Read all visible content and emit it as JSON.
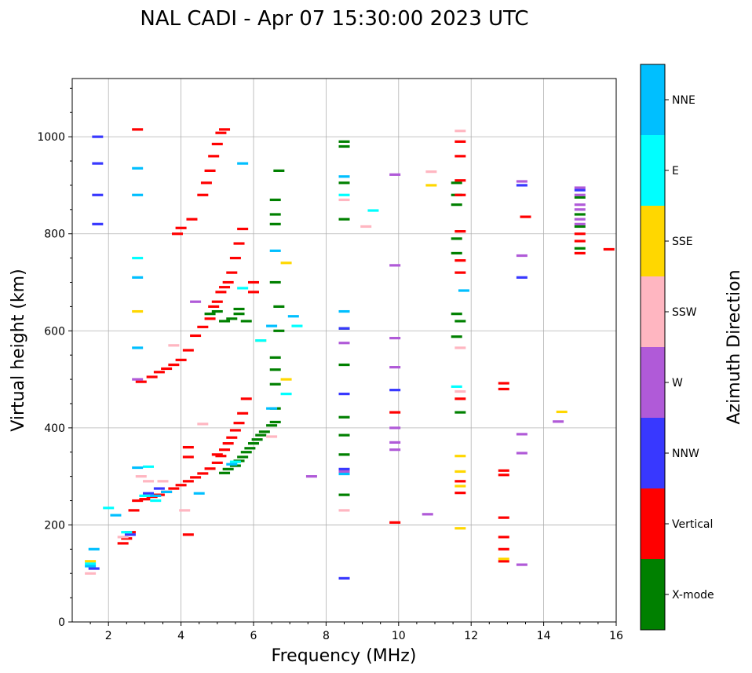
{
  "chart_data": {
    "type": "scatter",
    "title": "NAL CADI - Apr 07 15:30:00 2023 UTC",
    "xlabel": "Frequency (MHz)",
    "ylabel": "Virtual height (km)",
    "xlim": [
      1,
      16
    ],
    "ylim": [
      0,
      1120
    ],
    "xticks": [
      2,
      4,
      6,
      8,
      10,
      12,
      14,
      16
    ],
    "yticks": [
      0,
      200,
      400,
      600,
      800,
      1000
    ],
    "grid": true,
    "colorbar": {
      "label": "Azimuth Direction",
      "categories": [
        {
          "name": "X-mode",
          "color": "#008000"
        },
        {
          "name": "Vertical",
          "color": "#ff0000"
        },
        {
          "name": "NNW",
          "color": "#3838ff"
        },
        {
          "name": "W",
          "color": "#b05ad8"
        },
        {
          "name": "SSW",
          "color": "#ffb6c1"
        },
        {
          "name": "SSE",
          "color": "#ffd700"
        },
        {
          "name": "E",
          "color": "#00ffff"
        },
        {
          "name": "NNE",
          "color": "#00bfff"
        }
      ]
    },
    "series": [
      {
        "name": "X-mode",
        "points": [
          [
            4.8,
            635
          ],
          [
            5.0,
            640
          ],
          [
            5.2,
            620
          ],
          [
            5.4,
            625
          ],
          [
            5.6,
            635
          ],
          [
            5.6,
            645
          ],
          [
            5.8,
            620
          ],
          [
            5.2,
            307
          ],
          [
            5.3,
            315
          ],
          [
            5.5,
            322
          ],
          [
            5.6,
            332
          ],
          [
            5.7,
            340
          ],
          [
            5.8,
            350
          ],
          [
            5.9,
            358
          ],
          [
            6.0,
            368
          ],
          [
            6.1,
            376
          ],
          [
            6.2,
            385
          ],
          [
            6.3,
            392
          ],
          [
            6.5,
            405
          ],
          [
            6.6,
            412
          ],
          [
            6.6,
            440
          ],
          [
            6.6,
            490
          ],
          [
            6.6,
            520
          ],
          [
            6.6,
            545
          ],
          [
            6.7,
            600
          ],
          [
            6.7,
            650
          ],
          [
            6.6,
            700
          ],
          [
            6.6,
            840
          ],
          [
            6.6,
            870
          ],
          [
            6.6,
            820
          ],
          [
            6.7,
            930
          ],
          [
            8.5,
            990
          ],
          [
            8.5,
            980
          ],
          [
            8.5,
            905
          ],
          [
            8.5,
            830
          ],
          [
            8.5,
            605
          ],
          [
            8.5,
            530
          ],
          [
            8.5,
            422
          ],
          [
            8.5,
            385
          ],
          [
            8.5,
            345
          ],
          [
            8.5,
            262
          ],
          [
            11.6,
            905
          ],
          [
            11.6,
            880
          ],
          [
            11.6,
            860
          ],
          [
            11.6,
            790
          ],
          [
            11.6,
            760
          ],
          [
            11.6,
            635
          ],
          [
            11.7,
            620
          ],
          [
            11.6,
            588
          ],
          [
            11.7,
            432
          ],
          [
            15.0,
            875
          ],
          [
            15.0,
            840
          ],
          [
            15.0,
            815
          ],
          [
            15.0,
            770
          ]
        ]
      },
      {
        "name": "Vertical",
        "points": [
          [
            2.4,
            162
          ],
          [
            2.5,
            172
          ],
          [
            2.6,
            185
          ],
          [
            2.7,
            230
          ],
          [
            2.8,
            250
          ],
          [
            3.0,
            253
          ],
          [
            3.2,
            258
          ],
          [
            3.4,
            262
          ],
          [
            3.6,
            268
          ],
          [
            3.8,
            275
          ],
          [
            4.0,
            282
          ],
          [
            4.2,
            290
          ],
          [
            4.4,
            298
          ],
          [
            4.6,
            306
          ],
          [
            4.8,
            316
          ],
          [
            5.0,
            328
          ],
          [
            5.1,
            342
          ],
          [
            5.2,
            355
          ],
          [
            5.3,
            368
          ],
          [
            5.4,
            380
          ],
          [
            5.5,
            395
          ],
          [
            5.6,
            410
          ],
          [
            5.7,
            430
          ],
          [
            5.8,
            460
          ],
          [
            2.9,
            495
          ],
          [
            3.2,
            505
          ],
          [
            3.4,
            515
          ],
          [
            3.6,
            522
          ],
          [
            3.8,
            530
          ],
          [
            4.0,
            540
          ],
          [
            4.2,
            560
          ],
          [
            4.4,
            590
          ],
          [
            4.6,
            608
          ],
          [
            4.8,
            625
          ],
          [
            4.9,
            650
          ],
          [
            5.0,
            660
          ],
          [
            5.1,
            680
          ],
          [
            5.2,
            690
          ],
          [
            5.3,
            700
          ],
          [
            5.4,
            720
          ],
          [
            5.5,
            750
          ],
          [
            5.6,
            780
          ],
          [
            5.7,
            810
          ],
          [
            3.9,
            800
          ],
          [
            4.0,
            812
          ],
          [
            4.3,
            830
          ],
          [
            4.6,
            880
          ],
          [
            4.7,
            905
          ],
          [
            4.8,
            930
          ],
          [
            4.9,
            960
          ],
          [
            5.0,
            985
          ],
          [
            5.1,
            1008
          ],
          [
            5.2,
            1015
          ],
          [
            6.0,
            700
          ],
          [
            6.0,
            680
          ],
          [
            2.8,
            1015
          ],
          [
            4.2,
            360
          ],
          [
            4.2,
            340
          ],
          [
            4.2,
            180
          ],
          [
            5.0,
            345
          ],
          [
            11.7,
            745
          ],
          [
            11.7,
            720
          ],
          [
            11.7,
            460
          ],
          [
            11.7,
            290
          ],
          [
            11.7,
            266
          ],
          [
            11.7,
            990
          ],
          [
            11.7,
            960
          ],
          [
            11.7,
            910
          ],
          [
            11.7,
            880
          ],
          [
            11.7,
            805
          ],
          [
            12.9,
            492
          ],
          [
            12.9,
            480
          ],
          [
            12.9,
            312
          ],
          [
            12.9,
            303
          ],
          [
            12.9,
            215
          ],
          [
            12.9,
            175
          ],
          [
            12.9,
            150
          ],
          [
            12.9,
            125
          ],
          [
            13.5,
            835
          ],
          [
            15.0,
            800
          ],
          [
            15.0,
            785
          ],
          [
            15.0,
            760
          ],
          [
            15.8,
            768
          ],
          [
            9.9,
            432
          ],
          [
            9.9,
            205
          ]
        ]
      },
      {
        "name": "NNW",
        "points": [
          [
            1.7,
            1000
          ],
          [
            1.7,
            945
          ],
          [
            1.7,
            880
          ],
          [
            1.7,
            820
          ],
          [
            1.6,
            110
          ],
          [
            2.6,
            180
          ],
          [
            3.1,
            265
          ],
          [
            3.4,
            275
          ],
          [
            8.5,
            605
          ],
          [
            8.5,
            470
          ],
          [
            8.5,
            315
          ],
          [
            8.5,
            90
          ],
          [
            9.9,
            478
          ],
          [
            13.4,
            900
          ],
          [
            13.4,
            710
          ],
          [
            15.0,
            890
          ]
        ]
      },
      {
        "name": "W",
        "points": [
          [
            2.8,
            500
          ],
          [
            4.4,
            660
          ],
          [
            7.6,
            300
          ],
          [
            8.5,
            575
          ],
          [
            8.5,
            310
          ],
          [
            9.9,
            922
          ],
          [
            9.9,
            735
          ],
          [
            9.9,
            585
          ],
          [
            9.9,
            525
          ],
          [
            9.9,
            400
          ],
          [
            9.9,
            370
          ],
          [
            9.9,
            355
          ],
          [
            10.8,
            222
          ],
          [
            13.4,
            908
          ],
          [
            13.4,
            755
          ],
          [
            13.4,
            387
          ],
          [
            13.4,
            348
          ],
          [
            13.4,
            118
          ],
          [
            14.4,
            413
          ],
          [
            15.0,
            895
          ],
          [
            15.0,
            880
          ],
          [
            15.0,
            860
          ],
          [
            15.0,
            850
          ],
          [
            15.0,
            830
          ],
          [
            15.0,
            820
          ]
        ]
      },
      {
        "name": "SSW",
        "points": [
          [
            1.5,
            100
          ],
          [
            2.4,
            175
          ],
          [
            2.9,
            300
          ],
          [
            3.1,
            290
          ],
          [
            3.5,
            290
          ],
          [
            3.8,
            570
          ],
          [
            4.1,
            230
          ],
          [
            4.6,
            408
          ],
          [
            6.5,
            382
          ],
          [
            8.5,
            870
          ],
          [
            8.5,
            230
          ],
          [
            9.1,
            815
          ],
          [
            10.9,
            928
          ],
          [
            11.7,
            1012
          ],
          [
            11.7,
            565
          ],
          [
            11.7,
            475
          ]
        ]
      },
      {
        "name": "SSE",
        "points": [
          [
            1.5,
            125
          ],
          [
            2.8,
            640
          ],
          [
            6.2,
            580
          ],
          [
            6.9,
            740
          ],
          [
            6.9,
            500
          ],
          [
            10.9,
            900
          ],
          [
            11.7,
            342
          ],
          [
            11.7,
            310
          ],
          [
            11.7,
            280
          ],
          [
            11.7,
            193
          ],
          [
            12.9,
            130
          ],
          [
            14.5,
            433
          ]
        ]
      },
      {
        "name": "E",
        "points": [
          [
            1.5,
            120
          ],
          [
            2.0,
            235
          ],
          [
            2.5,
            185
          ],
          [
            2.8,
            750
          ],
          [
            3.0,
            260
          ],
          [
            3.1,
            320
          ],
          [
            3.3,
            250
          ],
          [
            5.5,
            330
          ],
          [
            5.7,
            688
          ],
          [
            6.2,
            580
          ],
          [
            6.9,
            470
          ],
          [
            7.2,
            610
          ],
          [
            8.5,
            880
          ],
          [
            9.3,
            848
          ],
          [
            11.6,
            485
          ]
        ]
      },
      {
        "name": "NNE",
        "points": [
          [
            1.5,
            115
          ],
          [
            1.6,
            150
          ],
          [
            2.2,
            220
          ],
          [
            2.8,
            935
          ],
          [
            2.8,
            880
          ],
          [
            2.8,
            710
          ],
          [
            2.8,
            565
          ],
          [
            2.8,
            318
          ],
          [
            3.3,
            260
          ],
          [
            3.6,
            268
          ],
          [
            4.5,
            265
          ],
          [
            5.4,
            325
          ],
          [
            5.7,
            945
          ],
          [
            6.5,
            610
          ],
          [
            6.6,
            765
          ],
          [
            6.5,
            440
          ],
          [
            7.1,
            630
          ],
          [
            8.5,
            918
          ],
          [
            8.5,
            640
          ],
          [
            8.5,
            305
          ],
          [
            11.8,
            683
          ]
        ]
      }
    ]
  }
}
